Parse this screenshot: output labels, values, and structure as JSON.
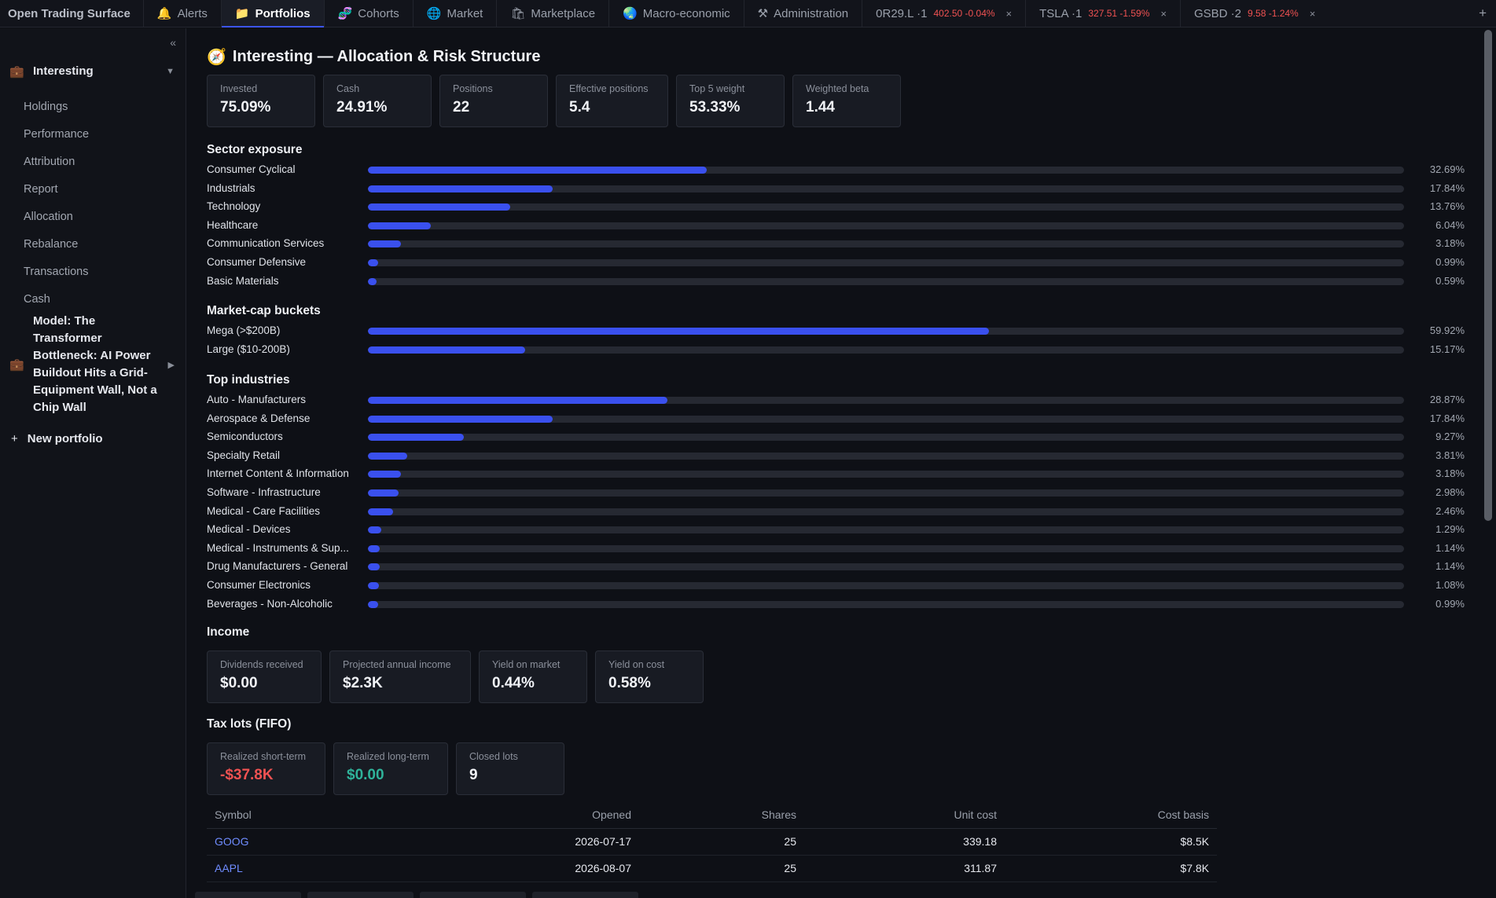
{
  "app_title": "Open Trading Surface",
  "tabs": [
    {
      "label": "Alerts",
      "icon": "🔔",
      "icon_name": "bell-icon",
      "active": false
    },
    {
      "label": "Portfolios",
      "icon": "📁",
      "icon_name": "folder-icon",
      "active": true
    },
    {
      "label": "Cohorts",
      "icon": "🧬",
      "icon_name": "dna-icon",
      "active": false
    },
    {
      "label": "Market",
      "icon": "🌐",
      "icon_name": "globe-icon",
      "active": false
    },
    {
      "label": "Marketplace",
      "icon": "🛍",
      "icon_name": "shopping-bag-icon",
      "active": false
    },
    {
      "label": "Macro-economic",
      "icon": "🌏",
      "icon_name": "earth-icon",
      "active": false
    },
    {
      "label": "Administration",
      "icon": "⚒",
      "icon_name": "tools-icon",
      "active": false
    }
  ],
  "ticker_tabs": [
    {
      "label": "0R29.L ·1",
      "price": "402.50 -0.04%"
    },
    {
      "label": "TSLA ·1",
      "price": "327.51 -1.59%"
    },
    {
      "label": "GSBD ·2",
      "price": "9.58 -1.24%"
    }
  ],
  "sidebar": {
    "collapse_glyph": "«",
    "portfolio": {
      "name": "Interesting",
      "icon": "💼",
      "caret": "▼"
    },
    "items": [
      "Holdings",
      "Performance",
      "Attribution",
      "Report",
      "Allocation",
      "Rebalance",
      "Transactions",
      "Cash"
    ],
    "model": {
      "lines": [
        "Model: The",
        "Transformer",
        "Bottleneck: AI Power",
        "Buildout Hits a Grid-",
        "Equipment Wall, Not a",
        "Chip Wall"
      ],
      "icon": "💼",
      "caret": "▶"
    },
    "new_portfolio": "New portfolio"
  },
  "page": {
    "title": "Interesting — Allocation & Risk Structure",
    "icon": "🧭"
  },
  "summary": [
    {
      "label": "Invested",
      "value": "75.09%"
    },
    {
      "label": "Cash",
      "value": "24.91%"
    },
    {
      "label": "Positions",
      "value": "22"
    },
    {
      "label": "Effective positions",
      "value": "5.4"
    },
    {
      "label": "Top 5 weight",
      "value": "53.33%"
    },
    {
      "label": "Weighted beta",
      "value": "1.44"
    }
  ],
  "sector_exposure": {
    "title": "Sector exposure",
    "rows": [
      {
        "name": "Consumer Cyclical",
        "pct_label": "32.69%",
        "value": 32.69
      },
      {
        "name": "Industrials",
        "pct_label": "17.84%",
        "value": 17.84
      },
      {
        "name": "Technology",
        "pct_label": "13.76%",
        "value": 13.76
      },
      {
        "name": "Healthcare",
        "pct_label": "6.04%",
        "value": 6.04
      },
      {
        "name": "Communication Services",
        "pct_label": "3.18%",
        "value": 3.18
      },
      {
        "name": "Consumer Defensive",
        "pct_label": "0.99%",
        "value": 0.99
      },
      {
        "name": "Basic Materials",
        "pct_label": "0.59%",
        "value": 0.59
      }
    ]
  },
  "market_cap": {
    "title": "Market-cap buckets",
    "rows": [
      {
        "name": "Mega (>$200B)",
        "pct_label": "59.92%",
        "value": 59.92
      },
      {
        "name": "Large ($10-200B)",
        "pct_label": "15.17%",
        "value": 15.17
      }
    ]
  },
  "top_industries": {
    "title": "Top industries",
    "rows": [
      {
        "name": "Auto - Manufacturers",
        "pct_label": "28.87%",
        "value": 28.87
      },
      {
        "name": "Aerospace & Defense",
        "pct_label": "17.84%",
        "value": 17.84
      },
      {
        "name": "Semiconductors",
        "pct_label": "9.27%",
        "value": 9.27
      },
      {
        "name": "Specialty Retail",
        "pct_label": "3.81%",
        "value": 3.81
      },
      {
        "name": "Internet Content & Information",
        "pct_label": "3.18%",
        "value": 3.18
      },
      {
        "name": "Software - Infrastructure",
        "pct_label": "2.98%",
        "value": 2.98
      },
      {
        "name": "Medical - Care Facilities",
        "pct_label": "2.46%",
        "value": 2.46
      },
      {
        "name": "Medical - Devices",
        "pct_label": "1.29%",
        "value": 1.29
      },
      {
        "name": "Medical - Instruments & Sup...",
        "pct_label": "1.14%",
        "value": 1.14
      },
      {
        "name": "Drug Manufacturers - General",
        "pct_label": "1.14%",
        "value": 1.14
      },
      {
        "name": "Consumer Electronics",
        "pct_label": "1.08%",
        "value": 1.08
      },
      {
        "name": "Beverages - Non-Alcoholic",
        "pct_label": "0.99%",
        "value": 0.99
      }
    ]
  },
  "income": {
    "title": "Income",
    "cards": [
      {
        "label": "Dividends received",
        "value": "$0.00"
      },
      {
        "label": "Projected annual income",
        "value": "$2.3K"
      },
      {
        "label": "Yield on market",
        "value": "0.44%"
      },
      {
        "label": "Yield on cost",
        "value": "0.58%"
      }
    ]
  },
  "tax_lots": {
    "title": "Tax lots (FIFO)",
    "cards": [
      {
        "label": "Realized short-term",
        "value": "-$37.8K",
        "tone": "neg"
      },
      {
        "label": "Realized long-term",
        "value": "$0.00",
        "tone": "pos"
      },
      {
        "label": "Closed lots",
        "value": "9",
        "tone": ""
      }
    ],
    "columns": [
      "Symbol",
      "Opened",
      "Shares",
      "Unit cost",
      "Cost basis"
    ],
    "rows": [
      {
        "symbol": "GOOG",
        "opened": "2026-07-17",
        "shares": "25",
        "unit_cost": "339.18",
        "cost_basis": "$8.5K"
      },
      {
        "symbol": "AAPL",
        "opened": "2026-08-07",
        "shares": "25",
        "unit_cost": "311.87",
        "cost_basis": "$7.8K"
      }
    ]
  },
  "colors": {
    "accent": "#3a50ee",
    "negative": "#f05252",
    "positive": "#2fb39a",
    "link": "#6f8cff"
  }
}
